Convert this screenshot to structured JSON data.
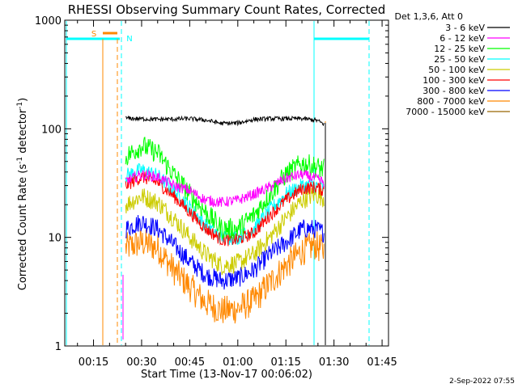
{
  "chart_data": {
    "type": "line",
    "title": "RHESSI Observing Summary Count Rates, Corrected",
    "xlabel": "Start Time (13-Nov-17 00:06:02)",
    "ylabel_main": "Corrected Count Rate (s",
    "ylabel_sup1": "-1",
    "ylabel_mid": " detector",
    "ylabel_sup2": "-1",
    "ylabel_end": ")",
    "yscale": "log",
    "ylim": [
      1,
      1000
    ],
    "xlim_minutes": [
      6.03,
      107
    ],
    "x_ticks": [
      {
        "label": "00:15",
        "minute": 15
      },
      {
        "label": "00:30",
        "minute": 30
      },
      {
        "label": "00:45",
        "minute": 45
      },
      {
        "label": "01:00",
        "minute": 60
      },
      {
        "label": "01:15",
        "minute": 75
      },
      {
        "label": "01:30",
        "minute": 90
      },
      {
        "label": "01:45",
        "minute": 105
      }
    ],
    "y_ticks": [
      {
        "label": "1",
        "value": 1
      },
      {
        "label": "10",
        "value": 10
      },
      {
        "label": "100",
        "value": 100
      },
      {
        "label": "1000",
        "value": 1000
      }
    ],
    "legend_title": "Det 1,3,6, Att 0",
    "legend_position": "right",
    "series": [
      {
        "name": "3 - 6 keV",
        "color": "#000000",
        "x": [
          25,
          35,
          45,
          50,
          55,
          60,
          65,
          70,
          80,
          84.5,
          87
        ],
        "y": [
          125,
          122,
          124,
          120,
          112,
          113,
          122,
          124,
          124,
          120,
          110
        ]
      },
      {
        "name": "6 - 12 keV",
        "color": "#ff00ff",
        "x": [
          25,
          30,
          35,
          40,
          45,
          50,
          55,
          60,
          65,
          70,
          75,
          80,
          84,
          87
        ],
        "y": [
          33,
          38,
          36,
          30,
          27,
          22,
          21,
          22,
          25,
          29,
          35,
          38,
          35,
          32
        ]
      },
      {
        "name": "12 - 25 keV",
        "color": "#00ff00",
        "x": [
          25,
          30,
          35,
          40,
          45,
          50,
          55,
          60,
          65,
          70,
          75,
          80,
          84,
          87
        ],
        "y": [
          55,
          70,
          60,
          38,
          25,
          17,
          12,
          12,
          16,
          25,
          38,
          48,
          45,
          42
        ]
      },
      {
        "name": "25 - 50 keV",
        "color": "#00ffff",
        "x": [
          25,
          30,
          35,
          40,
          45,
          50,
          55,
          60,
          65,
          70,
          75,
          80,
          84,
          87
        ],
        "y": [
          37,
          42,
          37,
          27,
          19,
          13,
          10,
          10,
          12,
          18,
          25,
          30,
          30,
          28
        ]
      },
      {
        "name": "50 - 100 keV",
        "color": "#cccc00",
        "x": [
          25,
          30,
          35,
          40,
          45,
          50,
          55,
          60,
          65,
          70,
          75,
          80,
          84,
          87
        ],
        "y": [
          20,
          24,
          21,
          15,
          10,
          7,
          5.5,
          5.8,
          7,
          10,
          15,
          22,
          25,
          23
        ]
      },
      {
        "name": "100 - 300 keV",
        "color": "#ff0000",
        "x": [
          25,
          30,
          35,
          40,
          45,
          50,
          55,
          60,
          65,
          70,
          75,
          80,
          84,
          87
        ],
        "y": [
          30,
          36,
          32,
          24,
          17,
          12,
          9.5,
          9.5,
          11,
          16,
          22,
          28,
          29,
          27
        ]
      },
      {
        "name": "300 - 800 keV",
        "color": "#0000ff",
        "x": [
          25,
          30,
          35,
          40,
          45,
          50,
          55,
          60,
          65,
          70,
          75,
          80,
          84,
          87
        ],
        "y": [
          12,
          14,
          12,
          8.5,
          6,
          4.5,
          4,
          4.2,
          5,
          7,
          9,
          12,
          12,
          11
        ]
      },
      {
        "name": "800 - 7000 keV",
        "color": "#ff8800",
        "x": [
          25,
          30,
          35,
          40,
          45,
          50,
          55,
          60,
          65,
          70,
          75,
          80,
          84,
          87
        ],
        "y": [
          8,
          9,
          8,
          5,
          3.5,
          2.5,
          2.1,
          2.2,
          2.6,
          3.8,
          5.5,
          7.5,
          8.5,
          7.5
        ]
      },
      {
        "name": "7000 - 15000 keV",
        "color": "#996600",
        "x": [],
        "y": []
      }
    ],
    "markers": [
      {
        "label": "S",
        "color": "#ff8800"
      },
      {
        "label": "N",
        "color": "#00ffff"
      }
    ]
  },
  "footer": {
    "date": "2-Sep-2022 07:55"
  }
}
